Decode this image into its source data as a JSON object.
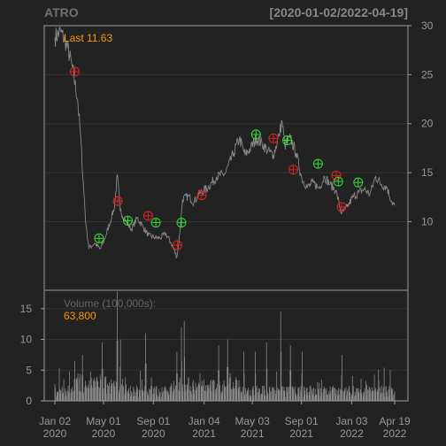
{
  "chart_data": {
    "type": "line",
    "symbol": "ATRO",
    "date_range": "[2020-01-02/2022-04-19]",
    "price_panel": {
      "last_label": "Last 11.63",
      "ylim": [
        3,
        30
      ],
      "yticks": [
        10,
        15,
        20,
        25,
        30
      ],
      "grid": true,
      "close": [
        [
          "2020-01-02",
          28.8
        ],
        [
          "2020-01-16",
          29.4
        ],
        [
          "2020-01-30",
          28.2
        ],
        [
          "2020-02-13",
          26.0
        ],
        [
          "2020-02-27",
          22.5
        ],
        [
          "2020-03-05",
          19.0
        ],
        [
          "2020-03-12",
          14.0
        ],
        [
          "2020-03-19",
          9.5
        ],
        [
          "2020-03-26",
          7.3
        ],
        [
          "2020-04-09",
          7.8
        ],
        [
          "2020-04-23",
          7.2
        ],
        [
          "2020-05-07",
          8.6
        ],
        [
          "2020-05-21",
          10.5
        ],
        [
          "2020-05-28",
          11.5
        ],
        [
          "2020-06-04",
          14.8
        ],
        [
          "2020-06-11",
          11.2
        ],
        [
          "2020-06-25",
          10.0
        ],
        [
          "2020-07-09",
          9.2
        ],
        [
          "2020-07-23",
          10.4
        ],
        [
          "2020-08-06",
          9.5
        ],
        [
          "2020-08-20",
          8.6
        ],
        [
          "2020-09-03",
          8.4
        ],
        [
          "2020-09-17",
          8.3
        ],
        [
          "2020-10-01",
          8.8
        ],
        [
          "2020-10-15",
          7.8
        ],
        [
          "2020-10-29",
          6.4
        ],
        [
          "2020-11-05",
          8.8
        ],
        [
          "2020-11-12",
          12.3
        ],
        [
          "2020-11-26",
          12.6
        ],
        [
          "2020-12-10",
          12.0
        ],
        [
          "2020-12-24",
          12.9
        ],
        [
          "2021-01-14",
          13.5
        ],
        [
          "2021-02-04",
          14.6
        ],
        [
          "2021-02-25",
          14.9
        ],
        [
          "2021-03-18",
          17.0
        ],
        [
          "2021-04-01",
          18.5
        ],
        [
          "2021-04-15",
          16.8
        ],
        [
          "2021-04-29",
          17.5
        ],
        [
          "2021-05-13",
          18.5
        ],
        [
          "2021-05-27",
          18.0
        ],
        [
          "2021-06-10",
          17.2
        ],
        [
          "2021-06-24",
          16.8
        ],
        [
          "2021-07-08",
          18.8
        ],
        [
          "2021-07-15",
          20.3
        ],
        [
          "2021-07-22",
          17.8
        ],
        [
          "2021-08-05",
          18.5
        ],
        [
          "2021-08-19",
          17.0
        ],
        [
          "2021-09-02",
          14.4
        ],
        [
          "2021-09-16",
          13.5
        ],
        [
          "2021-09-30",
          14.0
        ],
        [
          "2021-10-14",
          13.4
        ],
        [
          "2021-10-28",
          14.6
        ],
        [
          "2021-11-11",
          13.8
        ],
        [
          "2021-11-25",
          13.2
        ],
        [
          "2021-12-09",
          10.8
        ],
        [
          "2021-12-23",
          11.5
        ],
        [
          "2022-01-06",
          12.5
        ],
        [
          "2022-01-20",
          13.0
        ],
        [
          "2022-02-03",
          13.3
        ],
        [
          "2022-02-17",
          12.8
        ],
        [
          "2022-03-03",
          14.6
        ],
        [
          "2022-03-17",
          13.8
        ],
        [
          "2022-03-31",
          13.5
        ],
        [
          "2022-04-12",
          12.0
        ],
        [
          "2022-04-19",
          11.63
        ]
      ],
      "signals": [
        {
          "date": "2020-02-20",
          "price": 25.3,
          "type": "sell"
        },
        {
          "date": "2020-04-20",
          "price": 8.3,
          "type": "buy"
        },
        {
          "date": "2020-06-05",
          "price": 12.1,
          "type": "sell"
        },
        {
          "date": "2020-06-30",
          "price": 10.1,
          "type": "buy"
        },
        {
          "date": "2020-08-19",
          "price": 10.6,
          "type": "sell"
        },
        {
          "date": "2020-09-07",
          "price": 9.9,
          "type": "buy"
        },
        {
          "date": "2020-10-30",
          "price": 7.6,
          "type": "sell"
        },
        {
          "date": "2020-11-09",
          "price": 9.9,
          "type": "buy"
        },
        {
          "date": "2020-12-29",
          "price": 12.7,
          "type": "sell"
        },
        {
          "date": "2021-05-12",
          "price": 18.9,
          "type": "buy"
        },
        {
          "date": "2021-06-24",
          "price": 18.5,
          "type": "sell"
        },
        {
          "date": "2021-07-28",
          "price": 18.3,
          "type": "buy"
        },
        {
          "date": "2021-08-12",
          "price": 15.3,
          "type": "sell"
        },
        {
          "date": "2021-10-12",
          "price": 15.9,
          "type": "buy"
        },
        {
          "date": "2021-11-26",
          "price": 14.7,
          "type": "sell"
        },
        {
          "date": "2021-12-01",
          "price": 14.1,
          "type": "buy"
        },
        {
          "date": "2021-12-09",
          "price": 11.5,
          "type": "sell"
        },
        {
          "date": "2022-01-19",
          "price": 14.0,
          "type": "buy"
        }
      ]
    },
    "volume_panel": {
      "label": "Volume (100,000s):",
      "last_value": "63,800",
      "ylim": [
        0,
        18
      ],
      "yticks": [
        0,
        5,
        10,
        15
      ],
      "spikes": [
        [
          "2020-02-20",
          6.5
        ],
        [
          "2020-03-10",
          7.5
        ],
        [
          "2020-04-28",
          9.5
        ],
        [
          "2020-06-04",
          17.8
        ],
        [
          "2020-06-12",
          10.0
        ],
        [
          "2020-08-13",
          11.0
        ],
        [
          "2020-10-29",
          8.0
        ],
        [
          "2020-11-09",
          12.0
        ],
        [
          "2020-11-16",
          13.0
        ],
        [
          "2021-02-09",
          9.0
        ],
        [
          "2021-03-03",
          10.0
        ],
        [
          "2021-04-12",
          8.0
        ],
        [
          "2021-05-10",
          8.0
        ],
        [
          "2021-06-07",
          9.5
        ],
        [
          "2021-07-12",
          14.5
        ],
        [
          "2021-08-05",
          9.0
        ],
        [
          "2021-09-03",
          8.0
        ],
        [
          "2021-12-10",
          7.5
        ]
      ]
    },
    "x_ticks": [
      {
        "date": "2020-01-02",
        "label": "Jan 02\n2020"
      },
      {
        "date": "2020-05-01",
        "label": "May 01\n2020"
      },
      {
        "date": "2020-09-01",
        "label": "Sep 01\n2020"
      },
      {
        "date": "2021-01-04",
        "label": "Jan 04\n2021"
      },
      {
        "date": "2021-05-03",
        "label": "May 03\n2021"
      },
      {
        "date": "2021-09-01",
        "label": "Sep 01\n2021"
      },
      {
        "date": "2022-01-03",
        "label": "Jan 03\n2022"
      },
      {
        "date": "2022-04-19",
        "label": "Apr 19\n2022"
      }
    ],
    "colors": {
      "background": "#222222",
      "line": "#888888",
      "axis_text": "#999999",
      "frame": "#999999",
      "grid": "#333333",
      "last_label": "#ff9900",
      "buy": "#33dd33",
      "sell": "#dd2222"
    }
  }
}
